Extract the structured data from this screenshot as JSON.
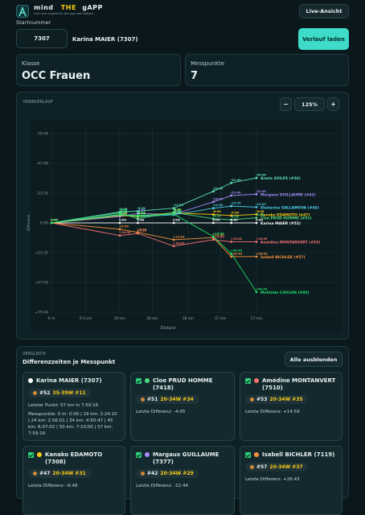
{
  "header": {
    "brand": [
      "mind",
      "THE",
      "gAPP"
    ],
    "tagline": "Live race insights for the gap that matters",
    "live_button": "Live-Ansicht"
  },
  "search": {
    "label": "Startnummer",
    "bib": "7307",
    "runner": "Karina MAIER (7307)",
    "button": "Verlauf laden"
  },
  "info": [
    {
      "label": "Klasse",
      "value": "OCC Frauen"
    },
    {
      "label": "Messpunkte",
      "value": 7
    }
  ],
  "chart_panel": {
    "title": "RENNVERLAUF",
    "zoom": [
      "−",
      "125%",
      "+"
    ]
  },
  "chart_data": {
    "type": "line",
    "x_label": "Distanz",
    "y_label": "Differenz",
    "x": [
      0,
      19,
      24,
      34,
      45,
      50,
      57
    ],
    "xlim": [
      0,
      57
    ],
    "xticks": [
      {
        "value": 0,
        "label": "0 m"
      },
      {
        "value": 9.5,
        "label": "9.5 km"
      },
      {
        "value": 19,
        "label": "19 km"
      },
      {
        "value": 28,
        "label": "28 km"
      },
      {
        "value": 38,
        "label": "38 km"
      },
      {
        "value": 47,
        "label": "47 km"
      },
      {
        "value": 57,
        "label": "57 km"
      }
    ],
    "ylim": [
      -4244,
      4244
    ],
    "y_reversed": true,
    "yticks": [
      {
        "value": -4244,
        "label": "-70:44"
      },
      {
        "value": -2829,
        "label": "-47:09"
      },
      {
        "value": -1415,
        "label": "-23:35"
      },
      {
        "value": 0,
        "label": "0:00"
      },
      {
        "value": 1415,
        "label": "+23:35"
      },
      {
        "value": 2829,
        "label": "+47:09"
      },
      {
        "value": 4244,
        "label": "+70:44"
      }
    ],
    "grid": true,
    "series": [
      {
        "name": "Anete SVILPE (#36)",
        "color": "#5ee0c0",
        "values": [
          0,
          -520,
          -560,
          -700,
          -1500,
          -1900,
          -2138
        ],
        "value_labels": [
          "0:00",
          "-8:40",
          "-9:20",
          "-11:40",
          "-25:00",
          "-31:40",
          "-35:38"
        ]
      },
      {
        "name": "Margaux GUILLAUME (#42)",
        "color": "#a78bfa",
        "values": [
          0,
          -300,
          -450,
          -400,
          -1000,
          -1300,
          -1364
        ],
        "value_labels": [
          "0:00",
          "-5:00",
          "-7:30",
          "-6:40",
          "-16:40",
          "-21:40",
          "-22:44"
        ]
      },
      {
        "name": "Ekaterina GALLAMOVA (#46)",
        "color": "#4fd1e8",
        "values": [
          0,
          -400,
          -300,
          -380,
          -700,
          -800,
          -749
        ],
        "value_labels": [
          "0:00",
          "-6:40",
          "-5:00",
          "-6:20",
          "-11:40",
          "-13:20",
          "-12:29"
        ]
      },
      {
        "name": "Kanako EDAMOTO (#47)",
        "color": "#facc15",
        "values": [
          0,
          -350,
          -320,
          -480,
          -400,
          -350,
          -408
        ],
        "value_labels": [
          "0:00",
          "-5:50",
          "-5:20",
          "-8:00",
          "-6:40",
          "-5:50",
          "-6:48"
        ]
      },
      {
        "name": "Cloe PRUD HOMME (#51)",
        "color": "#4ade80",
        "values": [
          0,
          -480,
          -200,
          -500,
          -200,
          -150,
          -245
        ],
        "value_labels": [
          "0:00",
          "-8:00",
          "-3:20",
          "-8:20",
          "-3:20",
          "-2:30",
          "-4:05"
        ]
      },
      {
        "name": "Karina MAIER (#52)",
        "color": "#ffffff",
        "values": [
          0,
          0,
          0,
          0,
          0,
          0,
          0
        ],
        "value_labels": [
          "0:00",
          "0:00",
          "0:00",
          "0:00",
          "0:00",
          "0:00",
          "0:00"
        ]
      },
      {
        "name": "Amédine MONTANVERT (#53)",
        "color": "#f87171",
        "values": [
          0,
          600,
          500,
          1100,
          800,
          900,
          899
        ],
        "value_labels": [
          "0:00",
          "+10:00",
          "+8:20",
          "+18:20",
          "+13:20",
          "+15:00",
          "+14:59"
        ]
      },
      {
        "name": "Isabell BICHLER (#57)",
        "color": "#fb923c",
        "values": [
          0,
          300,
          450,
          800,
          700,
          1600,
          1603
        ],
        "value_labels": [
          "0:00",
          "+5:00",
          "+7:30",
          "+13:20",
          "+11:40",
          "+26:40",
          "+26:43"
        ]
      },
      {
        "name": "Mathilde COULON (#80)",
        "color": "#22e06b",
        "values": [
          0,
          -380,
          -350,
          -420,
          650,
          1460,
          3284
        ],
        "value_labels": [
          "0:00",
          "-6:20",
          "-5:50",
          "-7:00",
          "+10:50",
          "+24:20",
          "+54:44"
        ]
      }
    ]
  },
  "comparison": {
    "label": "VERGLEICH",
    "title": "Differenzzeiten je Messpunkt",
    "button": "Alle ausblenden",
    "cards": [
      {
        "name": "Karina MAIER (7307)",
        "color": "#ffffff",
        "selectable": false,
        "rank": "#52",
        "age_group": "35-39W #11",
        "lines": [
          "Letzter Punkt: 57 km in 7:59:16",
          "Messpunkte: 0 m: 0:00 | 19 km: 2:24:10 | 24 km: 2:56:01 | 34 km: 4:50:47 | 45 km: 6:07:02 | 50 km: 7:10:00 | 57 km: 7:59:16"
        ]
      },
      {
        "name": "Cloe PRUD HOMME (7418)",
        "color": "#4ade80",
        "selectable": true,
        "rank": "#51",
        "age_group": "20-34W #34",
        "lines": [
          "Letzte Differenz: -4:05"
        ]
      },
      {
        "name": "Amédine MONTANVERT (7510)",
        "color": "#f87171",
        "selectable": true,
        "rank": "#53",
        "age_group": "20-34W #35",
        "lines": [
          "Letzte Differenz: +14:59"
        ]
      },
      {
        "name": "Kanako EDAMOTO (7308)",
        "color": "#facc15",
        "selectable": true,
        "rank": "#47",
        "age_group": "20-34W #31",
        "lines": [
          "Letzte Differenz: -6:48"
        ]
      },
      {
        "name": "Margaux GUILLAUME (7377)",
        "color": "#a78bfa",
        "selectable": true,
        "rank": "#42",
        "age_group": "20-34W #29",
        "lines": [
          "Letzte Differenz: -22:44"
        ]
      },
      {
        "name": "Isabell BICHLER (7119)",
        "color": "#fb923c",
        "selectable": true,
        "rank": "#57",
        "age_group": "20-34W #37",
        "lines": [
          "Letzte Differenz: +26:43"
        ]
      }
    ]
  }
}
